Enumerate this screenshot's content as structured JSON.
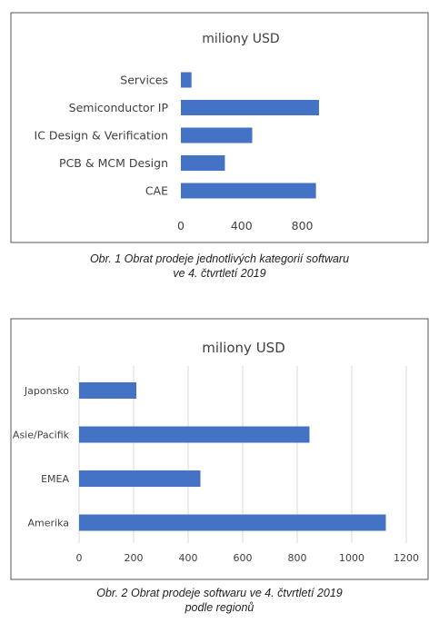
{
  "chart_data": [
    {
      "type": "bar",
      "orientation": "horizontal",
      "title": "miliony USD",
      "categories": [
        "Services",
        "Semiconductor IP",
        "IC Design & Verification",
        "PCB & MCM Design",
        "CAE"
      ],
      "values": [
        70,
        910,
        470,
        290,
        890
      ],
      "xticks": [
        "0",
        "400",
        "800"
      ],
      "xlim": [
        0,
        1000
      ],
      "grid": false,
      "color": "#4472c4"
    },
    {
      "type": "bar",
      "orientation": "horizontal",
      "title": "miliony USD",
      "categories": [
        "Japonsko",
        "Asie/Pacifik",
        "EMEA",
        "Amerika"
      ],
      "values": [
        210,
        845,
        445,
        1125
      ],
      "xticks": [
        "0",
        "200",
        "400",
        "600",
        "800",
        "1000",
        "1200"
      ],
      "xlim": [
        0,
        1200
      ],
      "grid": true,
      "color": "#4472c4"
    }
  ],
  "captions": [
    {
      "line1": "Obr. 1  Obrat prodeje jednotlivých kategorií softwaru",
      "line2": "ve 4. čtvrtletí 2019"
    },
    {
      "line1": "Obr. 2  Obrat prodeje softwaru ve 4. čtvrtletí 2019",
      "line2": "podle regionů"
    }
  ]
}
